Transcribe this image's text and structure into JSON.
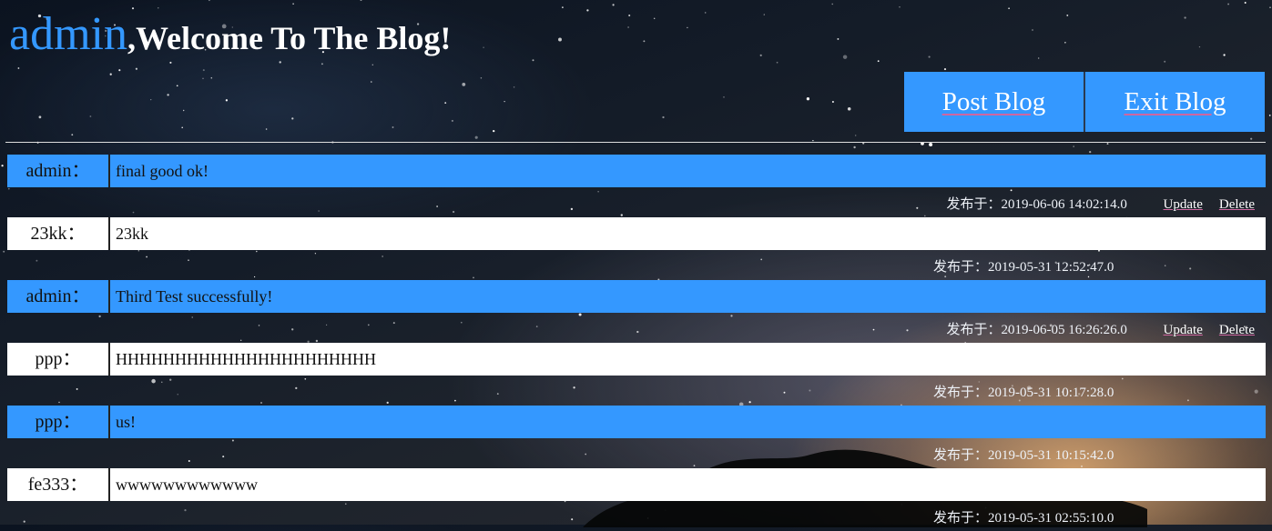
{
  "header": {
    "user": "admin",
    "welcome": ",Welcome To The Blog!"
  },
  "actions": {
    "post_label": "Post Blog",
    "exit_label": "Exit Blog"
  },
  "meta_prefix": "发布于：",
  "update_label": "Update",
  "delete_label": "Delete",
  "posts": [
    {
      "author": "admin：",
      "content": "final good ok!",
      "timestamp": "2019-06-06 14:02:14.0",
      "editable": true
    },
    {
      "author": "23kk：",
      "content": "23kk",
      "timestamp": "2019-05-31 12:52:47.0",
      "editable": false
    },
    {
      "author": "admin：",
      "content": "Third Test successfully!",
      "timestamp": "2019-06-05 16:26:26.0",
      "editable": true
    },
    {
      "author": "ppp：",
      "content": "HHHHHHHHHHHHHHHHHHHHHH",
      "timestamp": "2019-05-31 10:17:28.0",
      "editable": false
    },
    {
      "author": "ppp：",
      "content": "us!",
      "timestamp": "2019-05-31 10:15:42.0",
      "editable": false
    },
    {
      "author": "fe333：",
      "content": "wwwwwwwwwwww",
      "timestamp": "2019-05-31 02:55:10.0",
      "editable": false
    }
  ],
  "colors": {
    "accent": "#3498ff",
    "row_alt": "#ffffff",
    "link_underline": "#d066a0"
  }
}
